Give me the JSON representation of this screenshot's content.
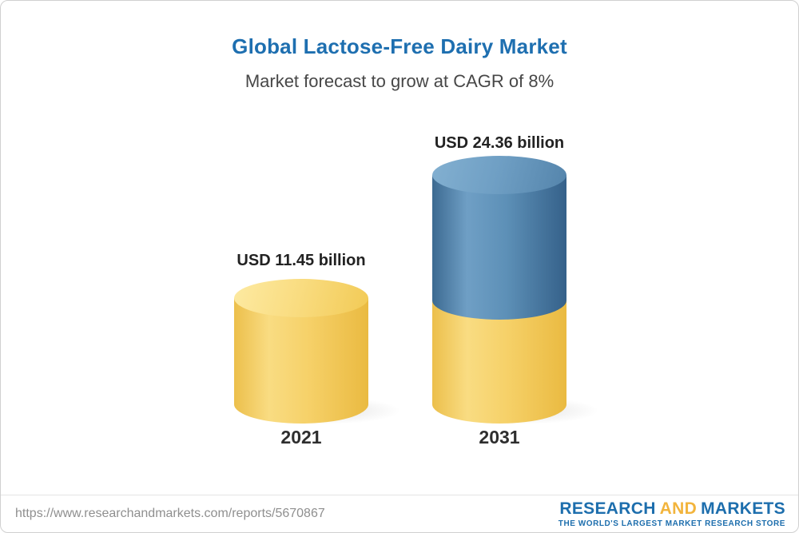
{
  "header": {
    "title": "Global Lactose-Free Dairy Market",
    "subtitle": "Market forecast to grow at CAGR of 8%"
  },
  "chart_data": {
    "type": "bar",
    "title": "Global Lactose-Free Dairy Market",
    "subtitle": "Market forecast to grow at CAGR of 8%",
    "unit": "USD billion",
    "cagr": "8%",
    "categories": [
      "2021",
      "2031"
    ],
    "values": [
      11.45,
      24.36
    ],
    "data_labels": [
      "USD 11.45 billion",
      "USD 24.36 billion"
    ],
    "segments": [
      {
        "category": "2021",
        "parts": [
          {
            "color": "#f6cf63",
            "value": 11.45
          }
        ]
      },
      {
        "category": "2031",
        "parts": [
          {
            "color": "#f6cf63",
            "value": 11.45
          },
          {
            "color": "#4a7ba3",
            "value": 12.91
          }
        ]
      }
    ],
    "axes": "none",
    "grid": "off",
    "legend_position": "none"
  },
  "footer": {
    "url": "https://www.researchandmarkets.com/reports/5670867",
    "logo": {
      "research": "RESEARCH",
      "and": "AND",
      "markets": "MARKETS",
      "tagline": "THE WORLD'S LARGEST MARKET RESEARCH STORE"
    }
  }
}
